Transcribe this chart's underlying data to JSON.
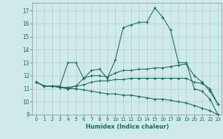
{
  "xlabel": "Humidex (Indice chaleur)",
  "bg_color": "#ceeaea",
  "grid_color": "#b0cccc",
  "line_color": "#1a6b5a",
  "xlim": [
    -0.5,
    23.5
  ],
  "ylim": [
    9,
    17.6
  ],
  "xticks": [
    0,
    1,
    2,
    3,
    4,
    5,
    6,
    7,
    8,
    9,
    10,
    11,
    12,
    13,
    14,
    15,
    16,
    17,
    18,
    19,
    20,
    21,
    22,
    23
  ],
  "yticks": [
    9,
    10,
    11,
    12,
    13,
    14,
    15,
    16,
    17
  ],
  "series": [
    {
      "x": [
        0,
        1,
        2,
        3,
        4,
        5,
        6,
        7,
        8,
        9,
        10,
        11,
        12,
        13,
        14,
        15,
        16,
        17,
        18,
        19,
        20,
        21,
        22,
        23
      ],
      "y": [
        11.5,
        11.2,
        11.2,
        11.2,
        13.0,
        13.0,
        11.8,
        12.4,
        12.5,
        11.8,
        13.2,
        15.7,
        15.9,
        16.1,
        16.1,
        17.2,
        16.5,
        15.5,
        13.0,
        13.0,
        11.0,
        10.8,
        10.2,
        9.0
      ]
    },
    {
      "x": [
        0,
        1,
        2,
        3,
        4,
        5,
        6,
        7,
        8,
        9,
        10,
        11,
        12,
        13,
        14,
        15,
        16,
        17,
        18,
        19,
        20,
        21,
        22,
        23
      ],
      "y": [
        11.5,
        11.2,
        11.2,
        11.1,
        11.0,
        11.2,
        11.8,
        12.0,
        12.0,
        11.9,
        12.2,
        12.4,
        12.4,
        12.5,
        12.5,
        12.6,
        12.6,
        12.7,
        12.8,
        12.9,
        12.0,
        11.5,
        10.8,
        9.8
      ]
    },
    {
      "x": [
        0,
        1,
        2,
        3,
        4,
        5,
        6,
        7,
        8,
        9,
        10,
        11,
        12,
        13,
        14,
        15,
        16,
        17,
        18,
        19,
        20,
        21,
        22,
        23
      ],
      "y": [
        11.5,
        11.2,
        11.2,
        11.1,
        11.1,
        11.2,
        11.3,
        11.5,
        11.6,
        11.6,
        11.7,
        11.7,
        11.8,
        11.8,
        11.8,
        11.8,
        11.8,
        11.8,
        11.8,
        11.8,
        11.5,
        11.4,
        11.0,
        9.8
      ]
    },
    {
      "x": [
        0,
        1,
        2,
        3,
        4,
        5,
        6,
        7,
        8,
        9,
        10,
        11,
        12,
        13,
        14,
        15,
        16,
        17,
        18,
        19,
        20,
        21,
        22,
        23
      ],
      "y": [
        11.5,
        11.2,
        11.2,
        11.1,
        11.0,
        11.0,
        10.9,
        10.8,
        10.7,
        10.6,
        10.6,
        10.5,
        10.5,
        10.4,
        10.3,
        10.2,
        10.2,
        10.1,
        10.0,
        9.9,
        9.7,
        9.5,
        9.3,
        9.0
      ]
    }
  ]
}
